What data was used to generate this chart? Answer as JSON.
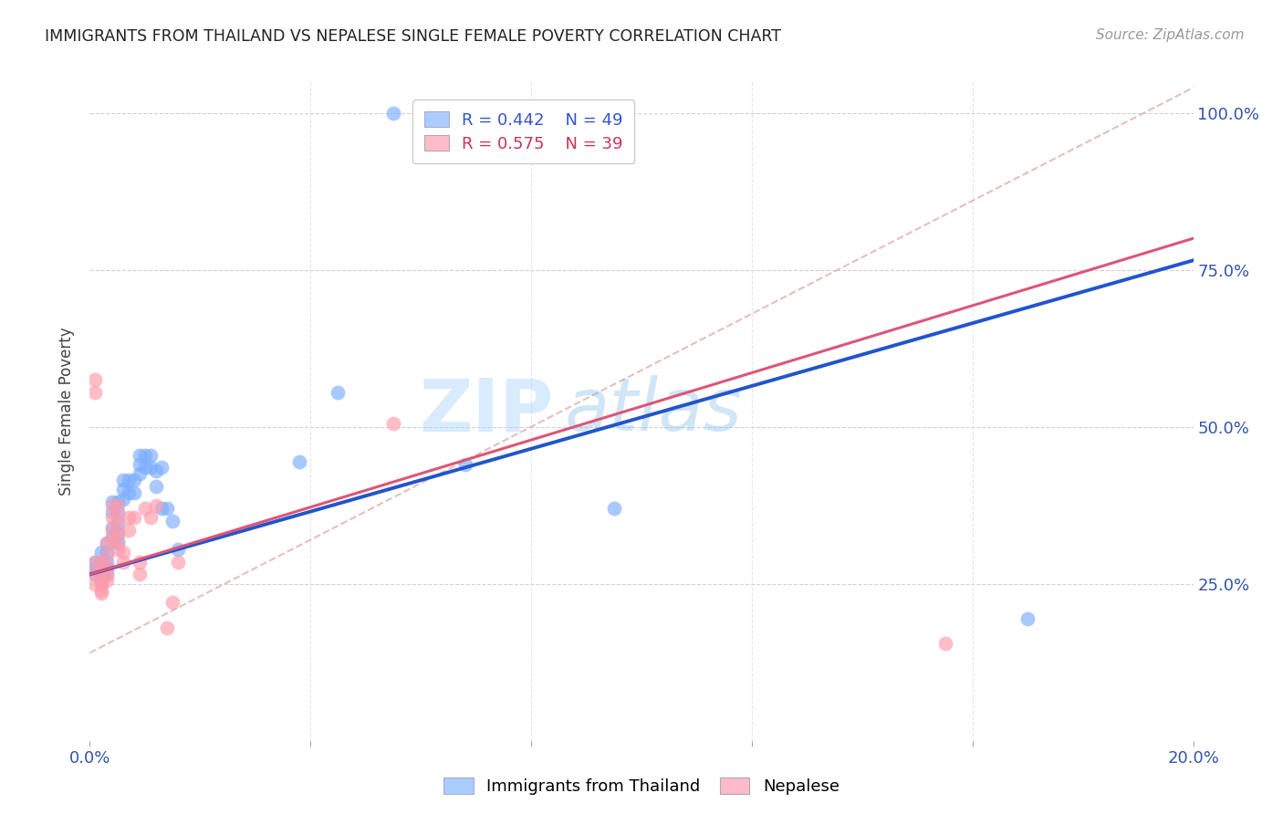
{
  "title": "IMMIGRANTS FROM THAILAND VS NEPALESE SINGLE FEMALE POVERTY CORRELATION CHART",
  "source": "Source: ZipAtlas.com",
  "ylabel": "Single Female Poverty",
  "x_min": 0.0,
  "x_max": 0.2,
  "y_min": 0.0,
  "y_max": 1.05,
  "x_ticks": [
    0.0,
    0.04,
    0.08,
    0.12,
    0.16,
    0.2
  ],
  "x_tick_labels": [
    "0.0%",
    "",
    "",
    "",
    "",
    "20.0%"
  ],
  "y_ticks": [
    0.0,
    0.25,
    0.5,
    0.75,
    1.0
  ],
  "y_tick_labels": [
    "",
    "25.0%",
    "50.0%",
    "75.0%",
    "100.0%"
  ],
  "blue_color": "#7aadff",
  "pink_color": "#ff9aaa",
  "blue_legend_color": "#aaccff",
  "pink_legend_color": "#ffbbcc",
  "trendline_blue_color": "#2255cc",
  "trendline_pink_color": "#dd5577",
  "legend_R1": "R = 0.442",
  "legend_N1": "N = 49",
  "legend_R2": "R = 0.575",
  "legend_N2": "N = 39",
  "watermark_zip": "ZIP",
  "watermark_atlas": "atlas",
  "blue_scatter_x": [
    0.055,
    0.001,
    0.001,
    0.001,
    0.002,
    0.002,
    0.002,
    0.002,
    0.002,
    0.003,
    0.003,
    0.003,
    0.003,
    0.003,
    0.004,
    0.004,
    0.004,
    0.004,
    0.005,
    0.005,
    0.005,
    0.005,
    0.005,
    0.006,
    0.006,
    0.006,
    0.007,
    0.007,
    0.008,
    0.008,
    0.009,
    0.009,
    0.009,
    0.01,
    0.01,
    0.011,
    0.011,
    0.012,
    0.012,
    0.013,
    0.013,
    0.014,
    0.015,
    0.016,
    0.038,
    0.045,
    0.068,
    0.095,
    0.17
  ],
  "blue_scatter_y": [
    1.0,
    0.285,
    0.275,
    0.265,
    0.3,
    0.285,
    0.275,
    0.265,
    0.255,
    0.315,
    0.3,
    0.285,
    0.275,
    0.265,
    0.38,
    0.365,
    0.34,
    0.325,
    0.38,
    0.365,
    0.345,
    0.33,
    0.315,
    0.415,
    0.4,
    0.385,
    0.415,
    0.395,
    0.415,
    0.395,
    0.455,
    0.44,
    0.425,
    0.455,
    0.435,
    0.455,
    0.435,
    0.43,
    0.405,
    0.435,
    0.37,
    0.37,
    0.35,
    0.305,
    0.445,
    0.555,
    0.44,
    0.37,
    0.195
  ],
  "pink_scatter_x": [
    0.001,
    0.001,
    0.001,
    0.001,
    0.001,
    0.002,
    0.002,
    0.002,
    0.002,
    0.002,
    0.003,
    0.003,
    0.003,
    0.003,
    0.003,
    0.004,
    0.004,
    0.004,
    0.004,
    0.005,
    0.005,
    0.005,
    0.005,
    0.005,
    0.006,
    0.006,
    0.007,
    0.007,
    0.008,
    0.009,
    0.009,
    0.01,
    0.011,
    0.012,
    0.014,
    0.015,
    0.016,
    0.055,
    0.155
  ],
  "pink_scatter_y": [
    0.575,
    0.555,
    0.285,
    0.265,
    0.25,
    0.285,
    0.265,
    0.25,
    0.24,
    0.235,
    0.315,
    0.295,
    0.275,
    0.265,
    0.255,
    0.375,
    0.355,
    0.335,
    0.32,
    0.375,
    0.355,
    0.335,
    0.32,
    0.305,
    0.3,
    0.285,
    0.355,
    0.335,
    0.355,
    0.285,
    0.265,
    0.37,
    0.355,
    0.375,
    0.18,
    0.22,
    0.285,
    0.505,
    0.155
  ],
  "blue_trend_x": [
    0.0,
    0.2
  ],
  "blue_trend_y": [
    0.265,
    0.765
  ],
  "pink_trend_x": [
    0.0,
    0.2
  ],
  "pink_trend_y": [
    0.265,
    0.8
  ],
  "dashed_line_x": [
    0.0,
    0.2
  ],
  "dashed_line_y": [
    0.14,
    1.04
  ]
}
